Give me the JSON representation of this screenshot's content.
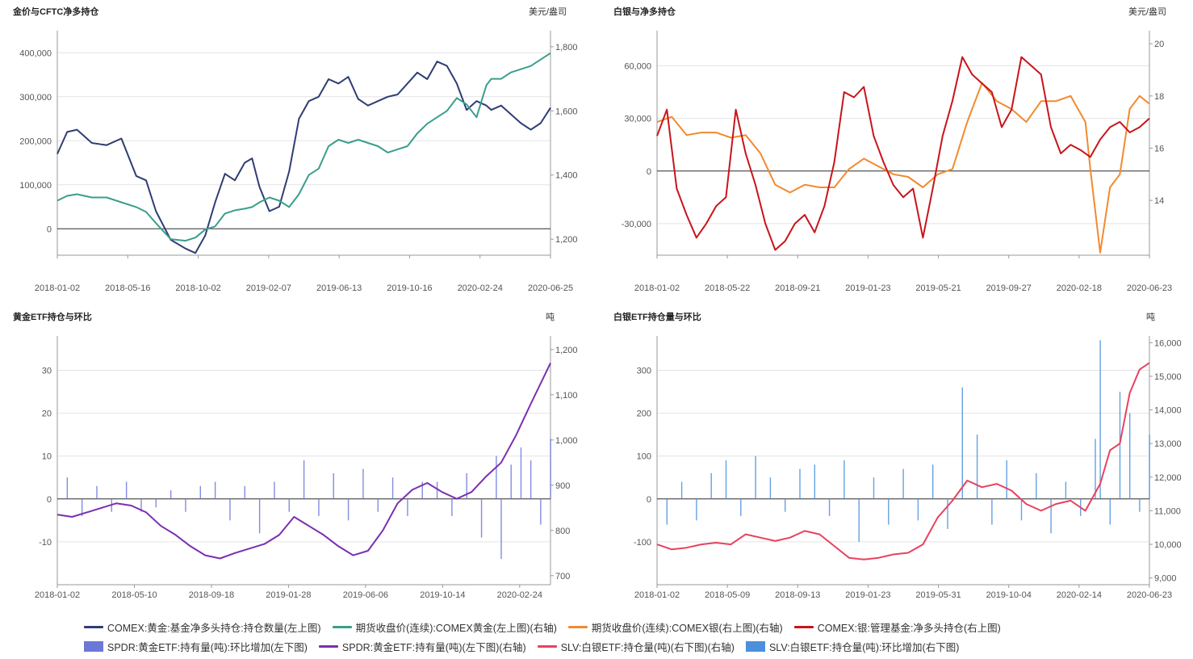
{
  "colors": {
    "navy": "#2f3d72",
    "teal": "#3a9e8c",
    "orange": "#f28a2e",
    "red": "#c8141b",
    "purple": "#7a2fb0",
    "blue_bar": "#6c78d8",
    "pink": "#e8415f",
    "sky_bar": "#4a90dc",
    "axis": "#999999",
    "grid": "#e4e4e4"
  },
  "legend": [
    {
      "label": "COMEX:黄金:基金净多头持仓:持仓数量(左上图)",
      "color": "#2f3d72",
      "shape": "line"
    },
    {
      "label": "期货收盘价(连续):COMEX黄金(左上图)(右轴)",
      "color": "#3a9e8c",
      "shape": "line"
    },
    {
      "label": "期货收盘价(连续):COMEX银(右上图)(右轴)",
      "color": "#f28a2e",
      "shape": "line"
    },
    {
      "label": "COMEX:银:管理基金:净多头持仓(右上图)",
      "color": "#c8141b",
      "shape": "line"
    },
    {
      "label": "SPDR:黄金ETF:持有量(吨):环比增加(左下图)",
      "color": "#6c78d8",
      "shape": "box"
    },
    {
      "label": "SPDR:黄金ETF:持有量(吨)(左下图)(右轴)",
      "color": "#7a2fb0",
      "shape": "line"
    },
    {
      "label": "SLV:白银ETF:持仓量(吨)(右下图)(右轴)",
      "color": "#e8415f",
      "shape": "line"
    },
    {
      "label": "SLV:白银ETF:持仓量(吨):环比增加(右下图)",
      "color": "#4a90dc",
      "shape": "box"
    }
  ],
  "chart_data": [
    {
      "type": "line",
      "title": "金价与CFTC净多持仓",
      "right_unit": "美元/盎司",
      "x_ticks": [
        "2018-01-02",
        "2018-05-16",
        "2018-10-02",
        "2019-02-07",
        "2019-06-13",
        "2019-10-16",
        "2020-02-24",
        "2020-06-25"
      ],
      "left_ylim": [
        -60000,
        450000
      ],
      "left_ticks": [
        0,
        100000,
        200000,
        300000,
        400000
      ],
      "left_tick_labels": [
        "0",
        "100,000",
        "200,000",
        "300,000",
        "400,000"
      ],
      "right_ylim": [
        1150,
        1850
      ],
      "right_ticks": [
        1200,
        1400,
        1600,
        1800
      ],
      "right_tick_labels": [
        "1,200",
        "1,400",
        "1,600",
        "1,800"
      ],
      "series": [
        {
          "name": "COMEX:黄金:基金净多头持仓:持仓数量(左上图)",
          "axis": "left",
          "color": "#2f3d72",
          "x": [
            0,
            0.02,
            0.04,
            0.07,
            0.1,
            0.13,
            0.16,
            0.18,
            0.2,
            0.23,
            0.26,
            0.28,
            0.3,
            0.32,
            0.34,
            0.36,
            0.38,
            0.395,
            0.41,
            0.43,
            0.45,
            0.47,
            0.49,
            0.51,
            0.53,
            0.55,
            0.57,
            0.59,
            0.61,
            0.63,
            0.65,
            0.67,
            0.69,
            0.71,
            0.73,
            0.75,
            0.77,
            0.79,
            0.81,
            0.83,
            0.85,
            0.87,
            0.88,
            0.9,
            0.92,
            0.94,
            0.96,
            0.98,
            1.0
          ],
          "values": [
            170000,
            220000,
            225000,
            195000,
            190000,
            205000,
            120000,
            110000,
            40000,
            -25000,
            -45000,
            -55000,
            -15000,
            60000,
            125000,
            110000,
            150000,
            160000,
            95000,
            40000,
            50000,
            130000,
            250000,
            290000,
            300000,
            340000,
            330000,
            345000,
            295000,
            280000,
            290000,
            300000,
            305000,
            330000,
            355000,
            340000,
            380000,
            370000,
            330000,
            270000,
            290000,
            280000,
            270000,
            280000,
            260000,
            240000,
            225000,
            240000,
            275000
          ]
        },
        {
          "name": "期货收盘价(连续):COMEX黄金(左上图)(右轴)",
          "axis": "right",
          "color": "#3a9e8c",
          "x": [
            0,
            0.02,
            0.04,
            0.07,
            0.1,
            0.13,
            0.16,
            0.18,
            0.2,
            0.23,
            0.26,
            0.28,
            0.3,
            0.32,
            0.34,
            0.36,
            0.38,
            0.395,
            0.41,
            0.43,
            0.45,
            0.47,
            0.49,
            0.51,
            0.53,
            0.55,
            0.57,
            0.59,
            0.61,
            0.63,
            0.65,
            0.67,
            0.69,
            0.71,
            0.73,
            0.75,
            0.77,
            0.79,
            0.81,
            0.83,
            0.85,
            0.87,
            0.88,
            0.9,
            0.92,
            0.94,
            0.96,
            0.98,
            1.0
          ],
          "values": [
            1320,
            1335,
            1340,
            1330,
            1330,
            1315,
            1300,
            1285,
            1250,
            1200,
            1195,
            1205,
            1230,
            1240,
            1280,
            1290,
            1295,
            1300,
            1315,
            1330,
            1320,
            1300,
            1340,
            1400,
            1420,
            1490,
            1510,
            1500,
            1510,
            1500,
            1490,
            1470,
            1480,
            1490,
            1530,
            1560,
            1580,
            1600,
            1640,
            1620,
            1580,
            1680,
            1700,
            1700,
            1720,
            1730,
            1740,
            1760,
            1780
          ]
        }
      ]
    },
    {
      "type": "line",
      "title": "白银与净多持仓",
      "right_unit": "美元/盎司",
      "x_ticks": [
        "2018-01-02",
        "2018-05-22",
        "2018-09-21",
        "2019-01-23",
        "2019-05-21",
        "2019-09-27",
        "2020-02-18",
        "2020-06-23"
      ],
      "left_ylim": [
        -48000,
        80000
      ],
      "left_ticks": [
        -30000,
        0,
        30000,
        60000
      ],
      "left_tick_labels": [
        "-30,000",
        "0",
        "30,000",
        "60,000"
      ],
      "right_ylim": [
        11.9,
        20.5
      ],
      "right_ticks": [
        14,
        16,
        18,
        20
      ],
      "right_tick_labels": [
        "14",
        "16",
        "18",
        "20"
      ],
      "series": [
        {
          "name": "期货收盘价(连续):COMEX银(右上图)(右轴)",
          "axis": "right",
          "color": "#f28a2e",
          "x": [
            0,
            0.03,
            0.06,
            0.09,
            0.12,
            0.15,
            0.18,
            0.21,
            0.24,
            0.27,
            0.3,
            0.33,
            0.36,
            0.39,
            0.42,
            0.45,
            0.48,
            0.51,
            0.54,
            0.57,
            0.6,
            0.63,
            0.66,
            0.69,
            0.72,
            0.75,
            0.78,
            0.81,
            0.84,
            0.87,
            0.88,
            0.9,
            0.92,
            0.94,
            0.96,
            0.98,
            1.0
          ],
          "values": [
            17.0,
            17.2,
            16.5,
            16.6,
            16.6,
            16.4,
            16.5,
            15.8,
            14.6,
            14.3,
            14.6,
            14.5,
            14.5,
            15.2,
            15.6,
            15.3,
            15.0,
            14.9,
            14.5,
            15.0,
            15.2,
            17.0,
            18.5,
            17.8,
            17.5,
            17.0,
            17.8,
            17.8,
            18.0,
            17.0,
            15.2,
            12.0,
            14.5,
            15.0,
            17.5,
            18.0,
            17.7
          ]
        },
        {
          "name": "COMEX:银:管理基金:净多头持仓(右上图)",
          "axis": "left",
          "color": "#c8141b",
          "x": [
            0,
            0.02,
            0.04,
            0.06,
            0.08,
            0.1,
            0.12,
            0.14,
            0.16,
            0.18,
            0.2,
            0.22,
            0.24,
            0.26,
            0.28,
            0.3,
            0.32,
            0.34,
            0.36,
            0.38,
            0.4,
            0.42,
            0.44,
            0.46,
            0.48,
            0.5,
            0.52,
            0.54,
            0.56,
            0.58,
            0.6,
            0.62,
            0.64,
            0.66,
            0.68,
            0.7,
            0.72,
            0.74,
            0.76,
            0.78,
            0.8,
            0.82,
            0.84,
            0.86,
            0.88,
            0.9,
            0.92,
            0.94,
            0.96,
            0.98,
            1.0
          ],
          "values": [
            20000,
            35000,
            -10000,
            -25000,
            -38000,
            -30000,
            -20000,
            -15000,
            35000,
            10000,
            -8000,
            -30000,
            -45000,
            -40000,
            -30000,
            -25000,
            -35000,
            -20000,
            5000,
            45000,
            42000,
            48000,
            20000,
            5000,
            -8000,
            -15000,
            -10000,
            -38000,
            -10000,
            20000,
            40000,
            65000,
            55000,
            50000,
            45000,
            25000,
            35000,
            65000,
            60000,
            55000,
            25000,
            10000,
            15000,
            12000,
            8000,
            18000,
            25000,
            28000,
            22000,
            25000,
            30000
          ]
        }
      ]
    },
    {
      "type": "bar+line",
      "title": "黄金ETF持仓与环比",
      "right_unit": "吨",
      "x_ticks": [
        "2018-01-02",
        "2018-05-10",
        "2018-09-18",
        "2019-01-28",
        "2019-06-06",
        "2019-10-14",
        "2020-02-24"
      ],
      "left_ylim": [
        -20,
        38
      ],
      "left_ticks": [
        -10,
        0,
        10,
        20,
        30
      ],
      "left_tick_labels": [
        "-10",
        "0",
        "10",
        "20",
        "30"
      ],
      "right_ylim": [
        680,
        1230
      ],
      "right_ticks": [
        700,
        800,
        900,
        1000,
        1100,
        1200
      ],
      "right_tick_labels": [
        "700",
        "800",
        "900",
        "1,000",
        "1,100",
        "1,200"
      ],
      "series": [
        {
          "name": "SPDR:黄金ETF:持有量(吨):环比增加(左下图)",
          "axis": "left",
          "type": "bar",
          "color": "#6c78d8",
          "x": [
            0.02,
            0.05,
            0.08,
            0.11,
            0.14,
            0.17,
            0.2,
            0.23,
            0.26,
            0.29,
            0.32,
            0.35,
            0.38,
            0.41,
            0.44,
            0.47,
            0.5,
            0.53,
            0.56,
            0.59,
            0.62,
            0.65,
            0.68,
            0.71,
            0.74,
            0.77,
            0.8,
            0.83,
            0.86,
            0.89,
            0.9,
            0.92,
            0.94,
            0.96,
            0.98,
            1.0
          ],
          "values": [
            5,
            -4,
            3,
            -3,
            4,
            -3,
            -2,
            2,
            -3,
            3,
            4,
            -5,
            3,
            -8,
            4,
            -3,
            9,
            -4,
            6,
            -5,
            7,
            -3,
            5,
            -4,
            4,
            4,
            -4,
            6,
            -9,
            10,
            -14,
            8,
            12,
            9,
            -6,
            14
          ]
        },
        {
          "name": "SPDR:黄金ETF:持有量(吨)(左下图)(右轴)",
          "axis": "right",
          "type": "line",
          "color": "#7a2fb0",
          "x": [
            0,
            0.03,
            0.06,
            0.09,
            0.12,
            0.15,
            0.18,
            0.21,
            0.24,
            0.27,
            0.3,
            0.33,
            0.36,
            0.39,
            0.42,
            0.45,
            0.48,
            0.51,
            0.54,
            0.57,
            0.6,
            0.63,
            0.66,
            0.69,
            0.72,
            0.75,
            0.78,
            0.81,
            0.84,
            0.87,
            0.9,
            0.93,
            0.96,
            1.0
          ],
          "values": [
            835,
            830,
            840,
            850,
            860,
            855,
            840,
            810,
            790,
            765,
            745,
            738,
            750,
            760,
            770,
            790,
            830,
            810,
            790,
            765,
            745,
            755,
            800,
            860,
            890,
            905,
            885,
            870,
            885,
            920,
            950,
            1010,
            1080,
            1170
          ]
        }
      ]
    },
    {
      "type": "bar+line",
      "title": "白银ETF持仓量与环比",
      "right_unit": "吨",
      "x_ticks": [
        "2018-01-02",
        "2018-05-09",
        "2018-09-13",
        "2019-01-23",
        "2019-05-31",
        "2019-10-04",
        "2020-02-14",
        "2020-06-23"
      ],
      "left_ylim": [
        -200,
        380
      ],
      "left_ticks": [
        -100,
        0,
        100,
        200,
        300
      ],
      "left_tick_labels": [
        "-100",
        "0",
        "100",
        "200",
        "300"
      ],
      "right_ylim": [
        8800,
        16200
      ],
      "right_ticks": [
        9000,
        10000,
        11000,
        12000,
        13000,
        14000,
        15000,
        16000
      ],
      "right_tick_labels": [
        "9,000",
        "10,000",
        "11,000",
        "12,000",
        "13,000",
        "14,000",
        "15,000",
        "16,000"
      ],
      "series": [
        {
          "name": "SLV:白银ETF:持仓量(吨):环比增加(右下图)",
          "axis": "left",
          "type": "bar",
          "color": "#4a90dc",
          "x": [
            0.02,
            0.05,
            0.08,
            0.11,
            0.14,
            0.17,
            0.2,
            0.23,
            0.26,
            0.29,
            0.32,
            0.35,
            0.38,
            0.41,
            0.44,
            0.47,
            0.5,
            0.53,
            0.56,
            0.59,
            0.62,
            0.65,
            0.68,
            0.71,
            0.74,
            0.77,
            0.8,
            0.83,
            0.86,
            0.89,
            0.9,
            0.92,
            0.94,
            0.96,
            0.98,
            1.0
          ],
          "values": [
            -60,
            40,
            -50,
            60,
            90,
            -40,
            100,
            50,
            -30,
            70,
            80,
            -40,
            90,
            -100,
            50,
            -60,
            70,
            -50,
            80,
            -70,
            260,
            150,
            -60,
            90,
            -50,
            60,
            -80,
            40,
            -40,
            140,
            370,
            -60,
            250,
            200,
            -30,
            150
          ]
        },
        {
          "name": "SLV:白银ETF:持仓量(吨)(右下图)(右轴)",
          "axis": "right",
          "type": "line",
          "color": "#e8415f",
          "x": [
            0,
            0.03,
            0.06,
            0.09,
            0.12,
            0.15,
            0.18,
            0.21,
            0.24,
            0.27,
            0.3,
            0.33,
            0.36,
            0.39,
            0.42,
            0.45,
            0.48,
            0.51,
            0.54,
            0.57,
            0.6,
            0.63,
            0.66,
            0.69,
            0.72,
            0.75,
            0.78,
            0.81,
            0.84,
            0.87,
            0.9,
            0.92,
            0.94,
            0.96,
            0.98,
            1.0
          ],
          "values": [
            10000,
            9850,
            9900,
            10000,
            10050,
            10000,
            10300,
            10200,
            10100,
            10200,
            10400,
            10300,
            9950,
            9600,
            9550,
            9600,
            9700,
            9750,
            10000,
            10800,
            11300,
            11900,
            11700,
            11800,
            11600,
            11200,
            11000,
            11200,
            11300,
            11000,
            11800,
            12800,
            13000,
            14500,
            15200,
            15400
          ]
        }
      ]
    }
  ]
}
